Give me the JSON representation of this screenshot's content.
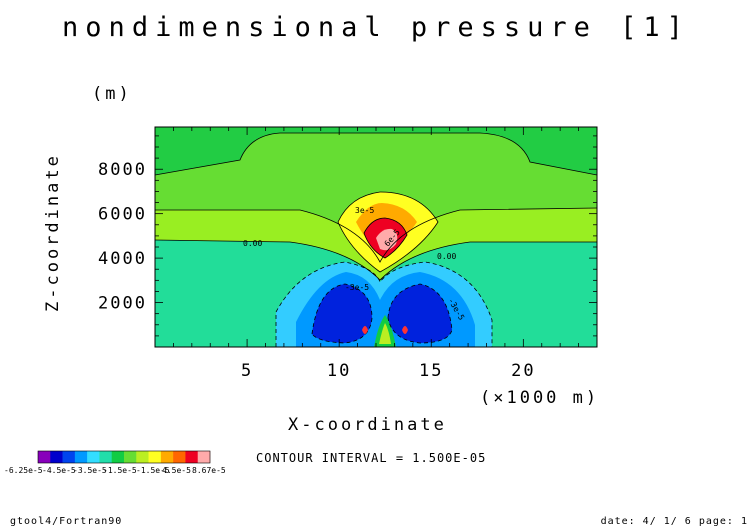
{
  "chart_data": {
    "type": "heatmap",
    "title": "nondimensional pressure [1]",
    "xlabel": "X-coordinate",
    "x_unit": "(×1000 m)",
    "ylabel": "Z-coordinate",
    "y_unit": "(m)",
    "xlim": [
      0,
      24
    ],
    "ylim": [
      0,
      9900
    ],
    "x_ticks": [
      5,
      10,
      15,
      20
    ],
    "y_ticks": [
      2000,
      4000,
      6000,
      8000
    ],
    "contour_interval_text": "CONTOUR INTERVAL = 1.500E-05",
    "contour_labels": [
      "3e-5",
      "6e-5",
      "0.00",
      "0.00",
      "-3e-5",
      "-3e-5"
    ],
    "colorbar": {
      "min_label": "-6.25e-5",
      "max_label": "8.67e-5",
      "tick_labels": [
        "-6.25e-5",
        "-4.5e-5",
        "-3.5e-5",
        "-1.5e-5",
        "-1.5e-5",
        "4.5e-5",
        "8.67e-5"
      ],
      "colors": [
        "#8800bb",
        "#0000cc",
        "#0044ee",
        "#0099ff",
        "#33ddff",
        "#22ddaa",
        "#11cc44",
        "#66dd33",
        "#bbee22",
        "#ffff22",
        "#ffaa00",
        "#ff6600",
        "#ee0022",
        "#ffaaaa"
      ]
    },
    "grid": false
  },
  "footer": {
    "left": "gtool4/Fortran90",
    "right": "date: 4/ 1/ 6 page: 1"
  }
}
